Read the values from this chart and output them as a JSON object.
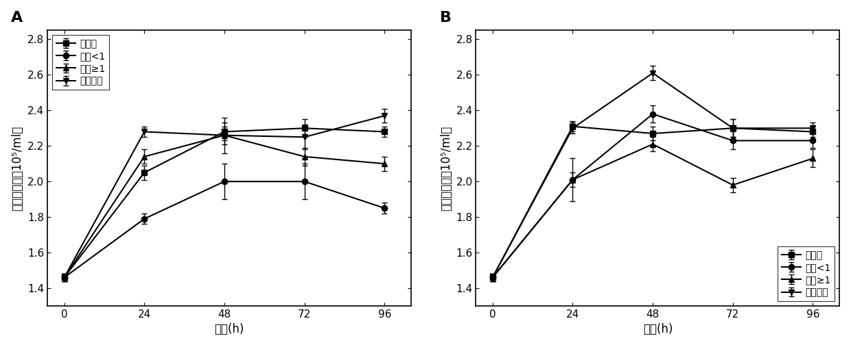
{
  "panel_A": {
    "label": "A",
    "x": [
      0,
      24,
      48,
      72,
      96
    ],
    "series": {
      "对照组": {
        "y": [
          1.46,
          2.05,
          2.28,
          2.3,
          2.28
        ],
        "yerr": [
          0.02,
          0.04,
          0.05,
          0.05,
          0.03
        ],
        "marker": "s",
        "linestyle": "-"
      },
      "粒径<1": {
        "y": [
          1.46,
          1.79,
          2.0,
          2.0,
          1.85
        ],
        "yerr": [
          0.02,
          0.03,
          0.1,
          0.1,
          0.03
        ],
        "marker": "o",
        "linestyle": "-"
      },
      "粒径≥1": {
        "y": [
          1.46,
          2.14,
          2.26,
          2.14,
          2.1
        ],
        "yerr": [
          0.02,
          0.04,
          0.05,
          0.05,
          0.04
        ],
        "marker": "^",
        "linestyle": "-"
      },
      "总颗粒物": {
        "y": [
          1.46,
          2.28,
          2.26,
          2.25,
          2.37
        ],
        "yerr": [
          0.02,
          0.03,
          0.1,
          0.07,
          0.04
        ],
        "marker": "v",
        "linestyle": "-"
      }
    },
    "legend_labels": [
      "对照组",
      "粒径<1",
      "粒径≥1",
      "总颗粒物"
    ],
    "xlabel": "时间(h)",
    "ylabel": "藻细胞数量（10⁵/ml）",
    "ylim": [
      1.3,
      2.85
    ],
    "yticks": [
      1.4,
      1.6,
      1.8,
      2.0,
      2.2,
      2.4,
      2.6,
      2.8
    ],
    "xticks": [
      0,
      24,
      48,
      72,
      96
    ],
    "legend_loc": "upper left"
  },
  "panel_B": {
    "label": "B",
    "x": [
      0,
      24,
      48,
      72,
      96
    ],
    "series": {
      "对照组": {
        "y": [
          1.46,
          2.31,
          2.27,
          2.3,
          2.28
        ],
        "yerr": [
          0.02,
          0.03,
          0.04,
          0.05,
          0.03
        ],
        "marker": "s",
        "linestyle": "-"
      },
      "粒径<1": {
        "y": [
          1.46,
          2.01,
          2.38,
          2.23,
          2.23
        ],
        "yerr": [
          0.02,
          0.04,
          0.05,
          0.05,
          0.04
        ],
        "marker": "o",
        "linestyle": "-"
      },
      "粒径≥1": {
        "y": [
          1.46,
          2.01,
          2.21,
          1.98,
          2.13
        ],
        "yerr": [
          0.02,
          0.12,
          0.04,
          0.04,
          0.05
        ],
        "marker": "^",
        "linestyle": "-"
      },
      "总颗粒物": {
        "y": [
          1.46,
          2.3,
          2.61,
          2.3,
          2.3
        ],
        "yerr": [
          0.02,
          0.03,
          0.04,
          0.05,
          0.03
        ],
        "marker": "v",
        "linestyle": "-"
      }
    },
    "legend_labels": [
      "对照组",
      "粒径<1",
      "粒径≥1",
      "总颗粒物"
    ],
    "xlabel": "时间(h)",
    "ylabel": "藻细胞数量（10⁵/ml）",
    "ylim": [
      1.3,
      2.85
    ],
    "yticks": [
      1.4,
      1.6,
      1.8,
      2.0,
      2.2,
      2.4,
      2.6,
      2.8
    ],
    "xticks": [
      0,
      24,
      48,
      72,
      96
    ],
    "legend_loc": "lower right"
  },
  "series_keys": [
    "对照组",
    "粒径<1",
    "粒径≥1",
    "总颗粒物"
  ],
  "markers_order": [
    "s",
    "o",
    "^",
    "v"
  ],
  "line_color": "#000000",
  "marker_color": "#000000",
  "marker_size": 6,
  "linewidth": 1.5,
  "capsize": 3,
  "elinewidth": 1.0,
  "tick_fontsize": 11,
  "label_fontsize": 12,
  "legend_fontsize": 10,
  "panel_label_fontsize": 16
}
